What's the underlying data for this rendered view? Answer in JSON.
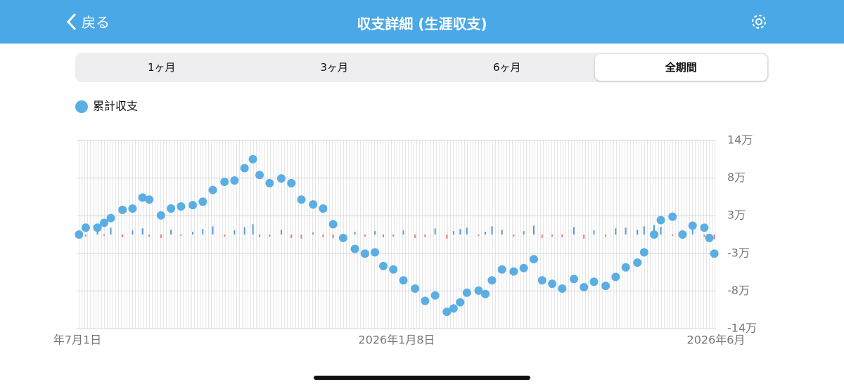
{
  "header": {
    "back": "戻る",
    "title": "収支詳細 (生涯収支)"
  },
  "tabs": {
    "items": [
      "1ヶ月",
      "3ヶ月",
      "6ヶ月",
      "全期間"
    ],
    "selected": 3
  },
  "chart_data": {
    "type": "combo",
    "x": [
      1,
      5,
      12,
      16,
      20,
      27,
      33,
      39,
      43,
      50,
      56,
      62,
      69,
      75,
      81,
      88,
      94,
      100,
      105,
      109,
      115,
      122,
      128,
      134,
      141,
      147,
      153,
      159,
      166,
      172,
      178,
      183,
      189,
      195,
      202,
      208,
      214,
      221,
      225,
      229,
      233,
      240,
      244,
      248,
      254,
      261,
      267,
      273,
      278,
      284,
      290,
      297,
      303,
      309,
      316,
      322,
      328,
      335,
      339,
      345,
      349,
      356,
      362,
      368,
      375,
      378,
      381
    ],
    "xlim": [
      0,
      382
    ],
    "xticks": [
      {
        "value": 0,
        "label": "年7月1日"
      },
      {
        "value": 191,
        "label": "2026年1月8日"
      },
      {
        "value": 382,
        "label": "2026年6月"
      }
    ],
    "ylim": [
      -13.75,
      13.75
    ],
    "yticks": [
      {
        "value": 13.75,
        "label": "14万"
      },
      {
        "value": 8.25,
        "label": "8万"
      },
      {
        "value": 2.75,
        "label": "3万"
      },
      {
        "value": -2.75,
        "label": "-3万"
      },
      {
        "value": -8.25,
        "label": "-8万"
      },
      {
        "value": -13.75,
        "label": "-14万"
      }
    ],
    "grid": true,
    "series": [
      {
        "name": "累計収支",
        "type": "scatter",
        "color": "#5aaee3",
        "values": [
          0,
          1.0,
          1.0,
          1.7,
          2.4,
          3.6,
          3.8,
          5.4,
          5.1,
          2.8,
          3.8,
          4.1,
          4.3,
          4.8,
          6.5,
          7.7,
          7.9,
          9.7,
          11.0,
          8.7,
          7.5,
          8.2,
          7.5,
          5.1,
          4.4,
          3.8,
          1.5,
          -0.5,
          -2.1,
          -2.8,
          -2.6,
          -4.6,
          -5.1,
          -6.7,
          -7.9,
          -9.7,
          -8.9,
          -11.3,
          -10.8,
          -9.9,
          -8.5,
          -8.2,
          -8.7,
          -6.7,
          -5.1,
          -5.4,
          -4.9,
          -3.6,
          -6.7,
          -7.2,
          -7.9,
          -6.5,
          -7.7,
          -6.9,
          -7.5,
          -6.2,
          -4.8,
          -4.1,
          -2.6,
          0,
          2.1,
          2.6,
          0,
          1.3,
          1.0,
          -0.5,
          -2.8
        ]
      },
      {
        "type": "bar",
        "color": "#5b9bd5",
        "negative_color": "#e07a7a",
        "values": [
          0.5,
          -0.3,
          0.8,
          -0.2,
          1.0,
          -0.4,
          0.6,
          0.9,
          -0.3,
          -0.5,
          0.7,
          -0.2,
          0.4,
          0.8,
          1.2,
          -0.3,
          0.6,
          1.1,
          1.5,
          -0.4,
          -0.3,
          0.7,
          -0.5,
          -0.6,
          0.3,
          -0.4,
          -0.5,
          -0.6,
          0.4,
          -0.3,
          0.5,
          -0.4,
          -0.3,
          0.6,
          -0.5,
          -0.4,
          0.9,
          -0.6,
          0.5,
          0.8,
          1.0,
          -0.2,
          0.4,
          1.2,
          0.7,
          -0.3,
          0.5,
          1.3,
          -0.5,
          -0.3,
          -0.4,
          1.1,
          -0.6,
          0.6,
          -0.3,
          0.9,
          1.0,
          0.7,
          1.2,
          1.4,
          1.1,
          -0.2,
          -0.6,
          1.0,
          -0.3,
          -0.4,
          -0.7
        ]
      }
    ]
  }
}
